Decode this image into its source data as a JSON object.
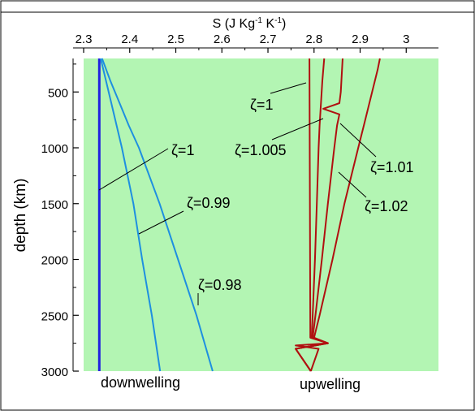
{
  "chart_data": {
    "type": "line",
    "xlabel_main": "S (J Kg",
    "xlabel_sup1": "-1",
    "xlabel_mid": " K",
    "xlabel_sup2": "-1",
    "xlabel_end": ")",
    "ylabel": "depth (km)",
    "xlim": [
      2.3,
      3.07
    ],
    "ylim": [
      3000,
      200
    ],
    "xticks": [
      "2.3",
      "2.4",
      "2.5",
      "2.6",
      "2.7",
      "2.8",
      "2.9",
      "3"
    ],
    "yticks": [
      "500",
      "1000",
      "1500",
      "2000",
      "2500",
      "3000"
    ],
    "regions": [
      "downwelling",
      "upwelling"
    ],
    "colors": {
      "background": "#b3f5b3",
      "downwelling_iso": "#2020e0",
      "downwelling": "#1e8fe0",
      "upwelling": "#b01010"
    },
    "series": [
      {
        "name": "ζ=1",
        "group": "downwelling",
        "depth": [
          200,
          3000
        ],
        "S": [
          2.334,
          2.334
        ]
      },
      {
        "name": "ζ=0.99",
        "group": "downwelling",
        "depth": [
          200,
          600,
          1000,
          1500,
          2000,
          2500,
          3000
        ],
        "S": [
          2.337,
          2.36,
          2.383,
          2.408,
          2.427,
          2.448,
          2.466
        ]
      },
      {
        "name": "ζ=0.98",
        "group": "downwelling",
        "depth": [
          200,
          400,
          600,
          800,
          1000,
          1500,
          2000,
          2500,
          3000
        ],
        "S": [
          2.34,
          2.358,
          2.378,
          2.398,
          2.42,
          2.465,
          2.505,
          2.545,
          2.58
        ]
      },
      {
        "name": "ζ=1",
        "group": "upwelling",
        "depth": [
          200,
          2700,
          2750,
          2770,
          2800,
          3000
        ],
        "S": [
          2.79,
          2.792,
          2.83,
          2.76,
          2.81,
          2.793
        ]
      },
      {
        "name": "ζ=1.005",
        "group": "upwelling",
        "depth": [
          200,
          400,
          600,
          800,
          1000,
          1500,
          2000,
          2500,
          2700,
          2750,
          2800,
          3000
        ],
        "S": [
          2.822,
          2.818,
          2.815,
          2.812,
          2.81,
          2.806,
          2.802,
          2.797,
          2.795,
          2.83,
          2.76,
          2.793
        ]
      },
      {
        "name": "ζ=1.01",
        "group": "upwelling",
        "depth": [
          200,
          500,
          600,
          650,
          700,
          800,
          1000,
          1500,
          2000,
          2500,
          2700,
          2750,
          2800,
          3000
        ],
        "S": [
          2.862,
          2.858,
          2.855,
          2.82,
          2.855,
          2.85,
          2.844,
          2.83,
          2.817,
          2.803,
          2.797,
          2.83,
          2.76,
          2.793
        ]
      },
      {
        "name": "ζ=1.02",
        "group": "upwelling",
        "depth": [
          200,
          300,
          500,
          800,
          1000,
          1500,
          2000,
          2500,
          2700,
          2750,
          2800,
          3000
        ],
        "S": [
          2.943,
          2.938,
          2.926,
          2.908,
          2.896,
          2.866,
          2.84,
          2.812,
          2.8,
          2.83,
          2.76,
          2.793
        ]
      }
    ],
    "annotations": [
      {
        "text": "ζ=1",
        "series": 0
      },
      {
        "text": "ζ=0.99",
        "series": 1
      },
      {
        "text": "ζ=0.98",
        "series": 2
      },
      {
        "text": "ζ=1",
        "series": 3
      },
      {
        "text": "ζ=1.005",
        "series": 4
      },
      {
        "text": "ζ=1.01",
        "series": 5
      },
      {
        "text": "ζ=1.02",
        "series": 6
      }
    ]
  }
}
